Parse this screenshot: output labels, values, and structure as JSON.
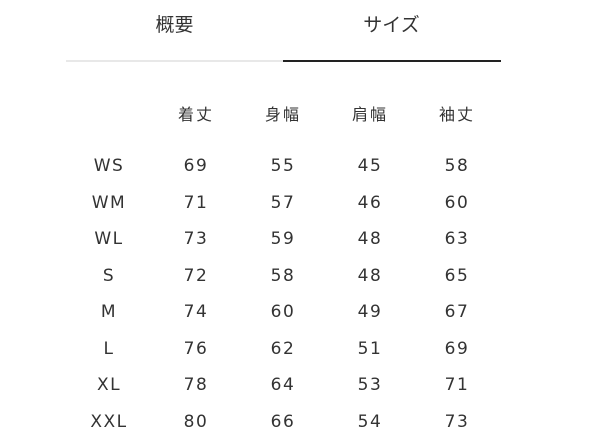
{
  "tabs": [
    {
      "label": "概要"
    },
    {
      "label": "サイズ",
      "active": true
    }
  ],
  "table": {
    "columns": [
      "",
      "着丈",
      "身幅",
      "肩幅",
      "袖丈"
    ],
    "rows": [
      [
        "WS",
        "69",
        "55",
        "45",
        "58"
      ],
      [
        "WM",
        "71",
        "57",
        "46",
        "60"
      ],
      [
        "WL",
        "73",
        "59",
        "48",
        "63"
      ],
      [
        "S",
        "72",
        "58",
        "48",
        "65"
      ],
      [
        "M",
        "74",
        "60",
        "49",
        "67"
      ],
      [
        "L",
        "76",
        "62",
        "51",
        "69"
      ],
      [
        "XL",
        "78",
        "64",
        "53",
        "71"
      ],
      [
        "XXL",
        "80",
        "66",
        "54",
        "73"
      ]
    ]
  }
}
